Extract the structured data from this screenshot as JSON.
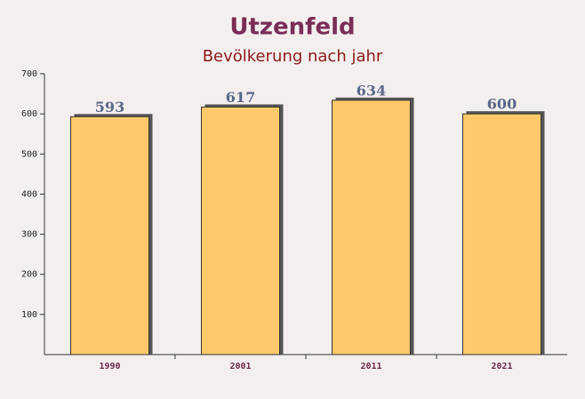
{
  "chart_data": {
    "type": "bar",
    "title": "Utzenfeld",
    "subtitle": "Bevölkerung nach jahr",
    "categories": [
      "1990",
      "2001",
      "2011",
      "2021"
    ],
    "values": [
      593,
      617,
      634,
      600
    ],
    "color": "#fec96a",
    "ylim": [
      0,
      700
    ],
    "yticks": [
      100,
      200,
      300,
      400,
      500,
      600,
      700
    ]
  }
}
